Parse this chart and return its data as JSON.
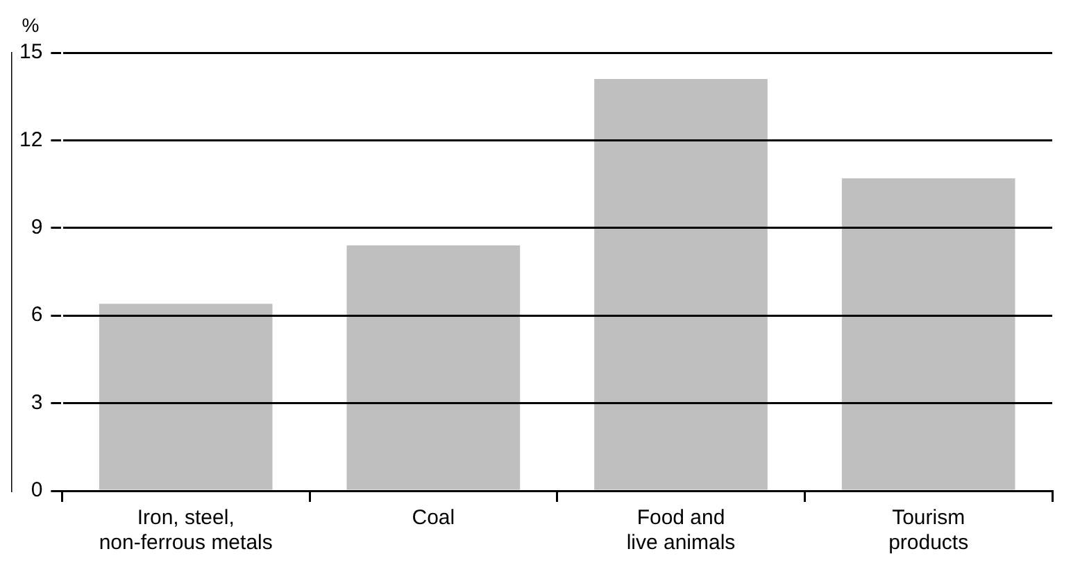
{
  "chart_data": {
    "type": "bar",
    "ylabel": "%",
    "categories": [
      "Iron, steel,\nnon-ferrous metals",
      "Coal",
      "Food and\nlive animals",
      "Tourism\nproducts"
    ],
    "values": [
      6.4,
      8.4,
      14.1,
      10.7
    ],
    "color": "#bfbfbf",
    "ylim": [
      0,
      15
    ],
    "yticks": [
      0,
      3,
      6,
      9,
      12,
      15
    ],
    "grid": "y",
    "legend": false
  }
}
